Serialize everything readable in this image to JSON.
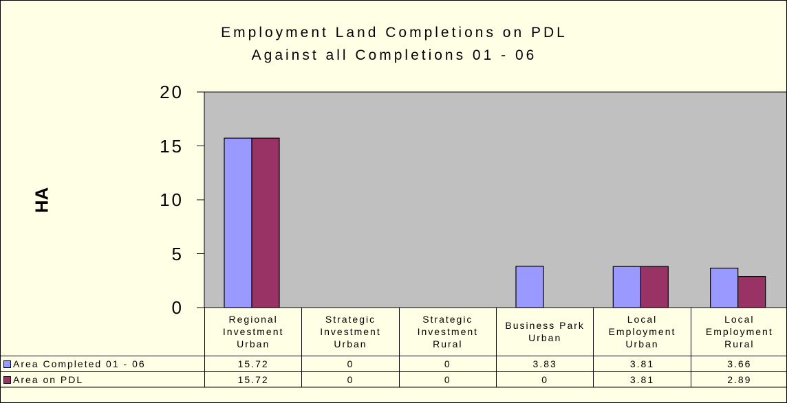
{
  "chart_data": {
    "type": "bar",
    "title": "Employment Land Completions on PDL\nAgainst all Completions 01 - 06",
    "y_label": "HA",
    "categories": [
      "Regional Investment Urban",
      "Strategic Investment Urban",
      "Strategic Investment Rural",
      "Business Park Urban",
      "Local Employment Urban",
      "Local Employment Rural"
    ],
    "series": [
      {
        "name": "Area Completed 01 - 06",
        "color": "#9999FF",
        "values": [
          15.72,
          0,
          0,
          3.83,
          3.81,
          3.66
        ]
      },
      {
        "name": "Area on PDL",
        "color": "#993366",
        "values": [
          15.72,
          0,
          0,
          0,
          3.81,
          2.89
        ]
      }
    ],
    "ylim": [
      0,
      20
    ],
    "yticks": [
      0,
      5,
      10,
      15,
      20
    ],
    "grid": false
  }
}
